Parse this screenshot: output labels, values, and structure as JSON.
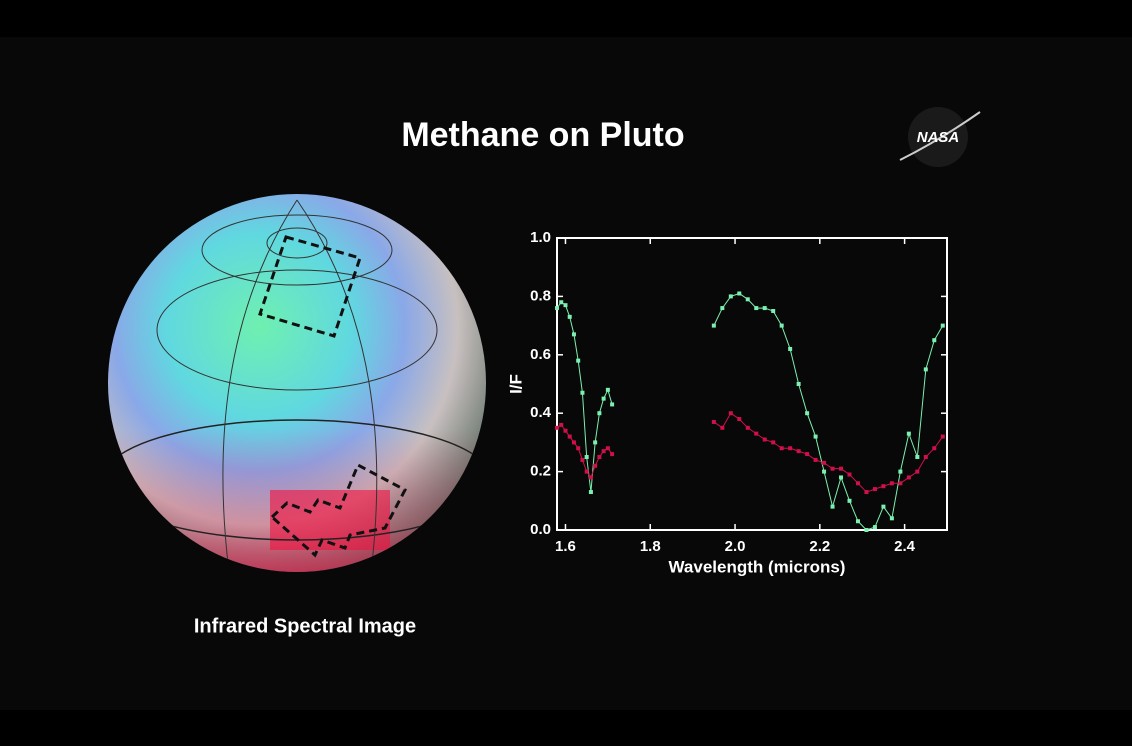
{
  "title": "Methane on Pluto",
  "logo": "NASA",
  "caption": "Infrared Spectral Image",
  "chart_data": {
    "type": "line",
    "xlabel": "Wavelength (microns)",
    "ylabel": "I/F",
    "x": [
      1.58,
      1.59,
      1.6,
      1.61,
      1.62,
      1.63,
      1.64,
      1.65,
      1.66,
      1.67,
      1.68,
      1.69,
      1.7,
      1.71,
      1.8,
      1.95,
      1.97,
      1.99,
      2.01,
      2.03,
      2.05,
      2.07,
      2.09,
      2.11,
      2.13,
      2.15,
      2.17,
      2.19,
      2.21,
      2.23,
      2.25,
      2.27,
      2.29,
      2.31,
      2.33,
      2.35,
      2.37,
      2.39,
      2.41,
      2.43,
      2.45,
      2.47,
      2.49
    ],
    "series": [
      {
        "color": "#7cf0b0",
        "values": [
          0.76,
          0.78,
          0.77,
          0.73,
          0.67,
          0.58,
          0.47,
          0.25,
          0.13,
          0.3,
          0.4,
          0.45,
          0.48,
          0.43,
          null,
          0.7,
          0.76,
          0.8,
          0.81,
          0.79,
          0.76,
          0.76,
          0.75,
          0.7,
          0.62,
          0.5,
          0.4,
          0.32,
          0.2,
          0.08,
          0.18,
          0.1,
          0.03,
          0.0,
          0.01,
          0.08,
          0.04,
          0.2,
          0.33,
          0.25,
          0.55,
          0.65,
          0.7
        ]
      },
      {
        "color": "#d0104a",
        "values": [
          0.35,
          0.36,
          0.34,
          0.32,
          0.3,
          0.28,
          0.24,
          0.2,
          0.18,
          0.22,
          0.25,
          0.27,
          0.28,
          0.26,
          null,
          0.37,
          0.35,
          0.4,
          0.38,
          0.35,
          0.33,
          0.31,
          0.3,
          0.28,
          0.28,
          0.27,
          0.26,
          0.24,
          0.23,
          0.21,
          0.21,
          0.19,
          0.16,
          0.13,
          0.14,
          0.15,
          0.16,
          0.16,
          0.18,
          0.2,
          0.25,
          0.28,
          0.32
        ]
      }
    ],
    "xlim": [
      1.58,
      2.5
    ],
    "ylim": [
      0,
      1
    ],
    "xticks": [
      1.6,
      1.8,
      {
        "value": 2.0,
        "label": "2.0"
      },
      2.2,
      2.4
    ],
    "yticks": [
      {
        "value": 0,
        "label": "0.0"
      },
      0.2,
      0.4,
      0.6,
      0.8,
      {
        "value": 1,
        "label": "1.0"
      }
    ]
  }
}
